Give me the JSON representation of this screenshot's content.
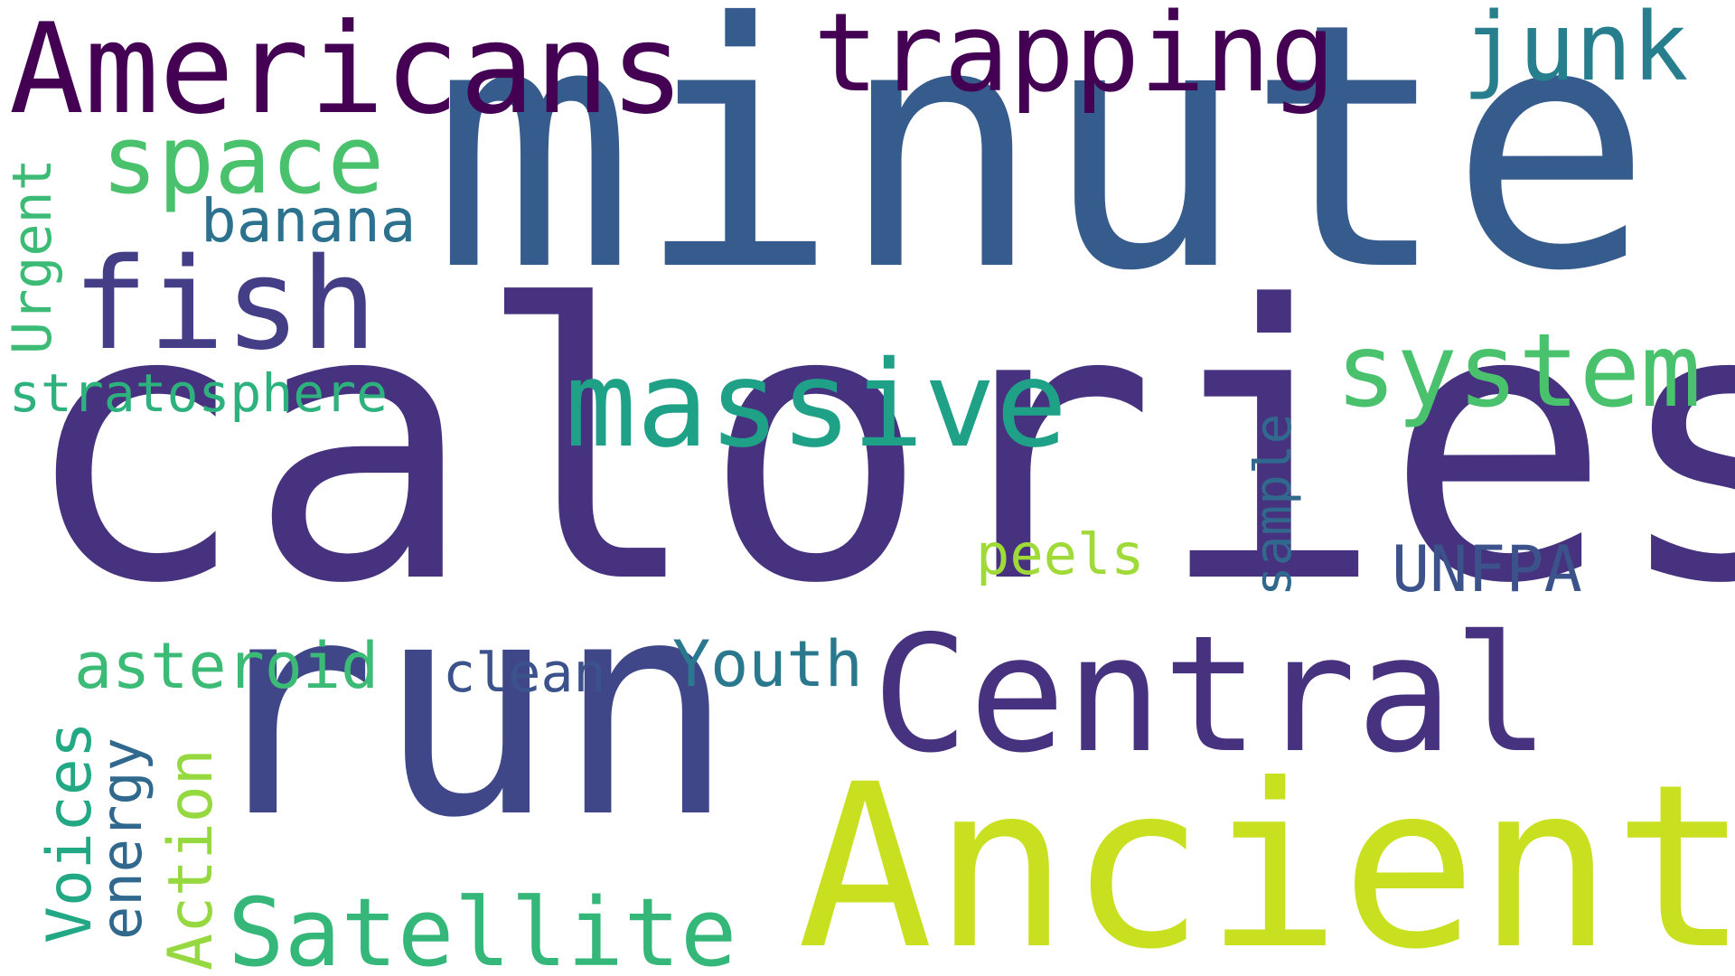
{
  "palette": {
    "dark_purple": "#440154",
    "indigo": "#46327e",
    "blue": "#365c8d",
    "teal_blue": "#277f8e",
    "teal": "#1fa187",
    "green": "#4ac16d",
    "lime": "#a0da39",
    "yellow_lime": "#c9e020",
    "background": "#ffffff"
  },
  "words": [
    {
      "text": "calories",
      "color": "#46327e"
    },
    {
      "text": "minute",
      "color": "#365c8d"
    },
    {
      "text": "run",
      "color": "#3f4788"
    },
    {
      "text": "Ancient",
      "color": "#c9e020"
    },
    {
      "text": "Central",
      "color": "#46327e"
    },
    {
      "text": "Americans",
      "color": "#440154"
    },
    {
      "text": "trapping",
      "color": "#440154"
    },
    {
      "text": "massive",
      "color": "#1fa187"
    },
    {
      "text": "system",
      "color": "#4ac16d"
    },
    {
      "text": "fish",
      "color": "#433e85"
    },
    {
      "text": "space",
      "color": "#4ac16d"
    },
    {
      "text": "junk",
      "color": "#277f8e"
    },
    {
      "text": "Satellite",
      "color": "#35b779"
    },
    {
      "text": "banana",
      "color": "#2c728e"
    },
    {
      "text": "stratosphere",
      "color": "#2db27d"
    },
    {
      "text": "asteroid",
      "color": "#3bbb75"
    },
    {
      "text": "clean",
      "color": "#3b528b"
    },
    {
      "text": "Youth",
      "color": "#2a788e"
    },
    {
      "text": "peels",
      "color": "#a0da39"
    },
    {
      "text": "UNFPA",
      "color": "#3b528b"
    },
    {
      "text": "sample",
      "color": "#31688e"
    },
    {
      "text": "Urgent",
      "color": "#3bbb75"
    },
    {
      "text": "Voices",
      "color": "#22a884"
    },
    {
      "text": "energy",
      "color": "#31688e"
    },
    {
      "text": "Action",
      "color": "#95d840"
    }
  ]
}
